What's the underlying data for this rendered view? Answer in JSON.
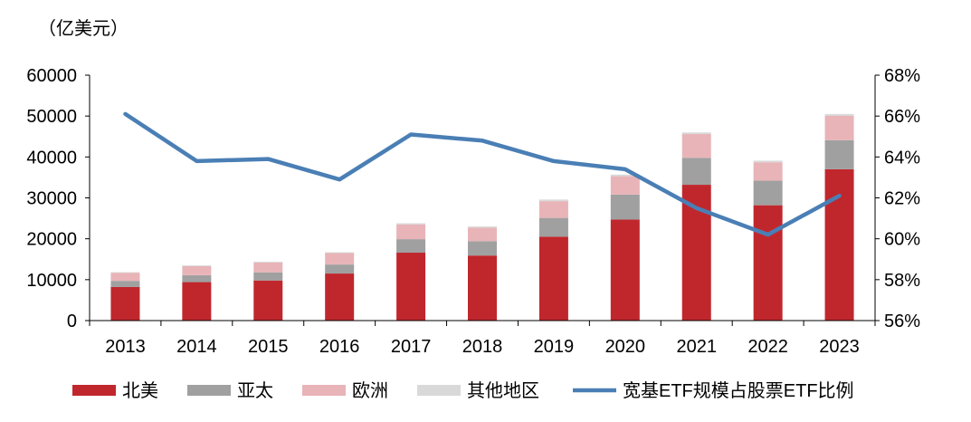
{
  "chart_data": {
    "type": "bar",
    "stacked": true,
    "unit_label": "（亿美元）",
    "categories": [
      "2013",
      "2014",
      "2015",
      "2016",
      "2017",
      "2018",
      "2019",
      "2020",
      "2021",
      "2022",
      "2023"
    ],
    "series": [
      {
        "name": "北美",
        "axis": "left",
        "color": "#c0272d",
        "values": [
          8200,
          9400,
          9800,
          11500,
          16600,
          15900,
          20500,
          24700,
          33200,
          28200,
          37000
        ]
      },
      {
        "name": "亚太",
        "axis": "left",
        "color": "#a0a0a0",
        "values": [
          1500,
          1700,
          2000,
          2200,
          3300,
          3500,
          4600,
          6100,
          6600,
          6000,
          7100
        ]
      },
      {
        "name": "欧洲",
        "axis": "left",
        "color": "#e8b4b8",
        "values": [
          2000,
          2200,
          2400,
          2800,
          3600,
          3300,
          4100,
          4500,
          5800,
          4500,
          6000
        ]
      },
      {
        "name": "其他地区",
        "axis": "left",
        "color": "#d9d9d9",
        "values": [
          150,
          200,
          200,
          200,
          300,
          300,
          400,
          400,
          400,
          400,
          400
        ]
      }
    ],
    "line": {
      "name": "宽基ETF规模占股票ETF比例",
      "axis": "right",
      "color": "#4a7fb5",
      "values": [
        66.1,
        63.8,
        63.9,
        62.9,
        65.1,
        64.8,
        63.8,
        63.4,
        61.5,
        60.2,
        62.1
      ]
    },
    "y_left": {
      "min": 0,
      "max": 60000,
      "ticks": [
        0,
        10000,
        20000,
        30000,
        40000,
        50000,
        60000
      ],
      "tick_labels": [
        "0",
        "10000",
        "20000",
        "30000",
        "40000",
        "50000",
        "60000"
      ]
    },
    "y_right": {
      "min": 56,
      "max": 68,
      "ticks": [
        56,
        58,
        60,
        62,
        64,
        66,
        68
      ],
      "tick_labels": [
        "56%",
        "58%",
        "60%",
        "62%",
        "64%",
        "66%",
        "68%"
      ]
    },
    "legend_position": "bottom",
    "grid": false
  }
}
